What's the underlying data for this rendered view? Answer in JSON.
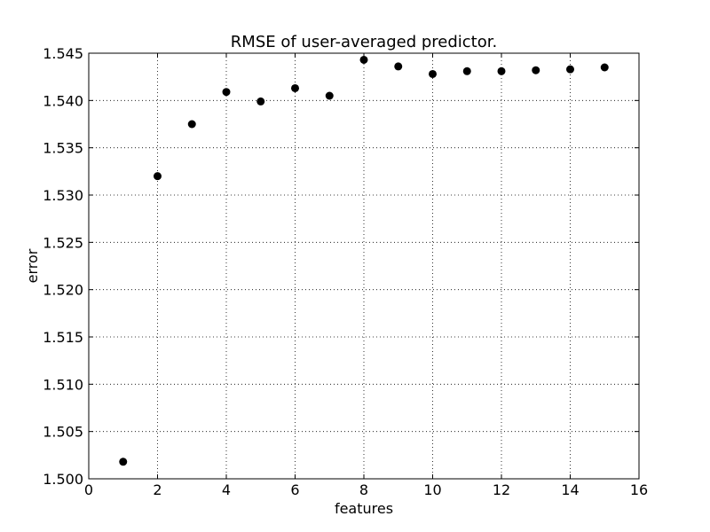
{
  "chart_data": {
    "type": "scatter",
    "title": "RMSE of user-averaged predictor.",
    "xlabel": "features",
    "ylabel": "error",
    "xlim": [
      0,
      16
    ],
    "ylim": [
      1.5,
      1.545
    ],
    "x_ticks": [
      "0",
      "2",
      "4",
      "6",
      "8",
      "10",
      "12",
      "14",
      "16"
    ],
    "y_ticks": [
      "1.500",
      "1.505",
      "1.510",
      "1.515",
      "1.520",
      "1.525",
      "1.530",
      "1.535",
      "1.540",
      "1.545"
    ],
    "grid": true,
    "marker_color": "#000000",
    "x": [
      1,
      2,
      3,
      4,
      5,
      6,
      7,
      8,
      9,
      10,
      11,
      12,
      13,
      14,
      15
    ],
    "y": [
      1.5018,
      1.532,
      1.5375,
      1.5409,
      1.5399,
      1.5413,
      1.5405,
      1.5443,
      1.5436,
      1.5428,
      1.5431,
      1.5431,
      1.5432,
      1.5433,
      1.5435
    ]
  }
}
